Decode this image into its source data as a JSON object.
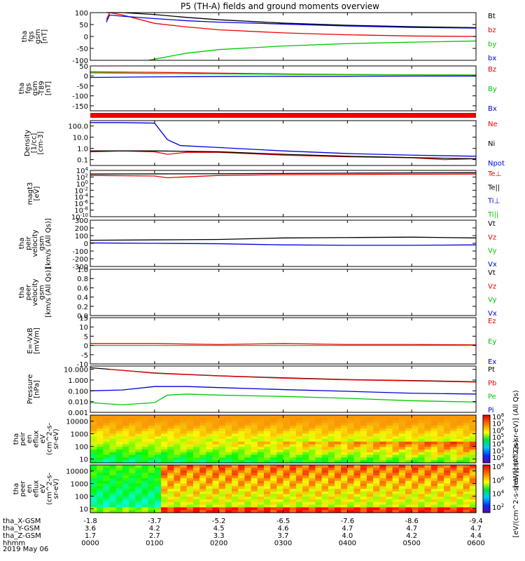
{
  "title": "P5 (TH-A) fields and ground moments overview",
  "date": "2019 May 06",
  "colors": {
    "black": "#000000",
    "red": "#ee0000",
    "green": "#00c800",
    "blue": "#0000dd"
  },
  "chart_data": {
    "type": "line",
    "title": "P5 (TH-A) fields and ground moments overview",
    "xaxis": {
      "time_ticks": [
        "0000",
        "0100",
        "0200",
        "0300",
        "0400",
        "0500",
        "0600"
      ],
      "ephemeris": [
        {
          "name": "tha_X-GSM",
          "values": [
            "-1.8",
            "-3.7",
            "-5.2",
            "-6.5",
            "-7.6",
            "-8.6",
            "-9.4"
          ]
        },
        {
          "name": "tha_Y-GSM",
          "values": [
            "3.6",
            "4.2",
            "4.5",
            "4.6",
            "4.7",
            "4.7",
            "4.7"
          ]
        },
        {
          "name": "tha_Z-GSM",
          "values": [
            "1.7",
            "2.7",
            "3.3",
            "3.7",
            "4.0",
            "4.2",
            "4.4"
          ]
        },
        {
          "name": "hhmm",
          "values": [
            "0000",
            "0100",
            "0200",
            "0300",
            "0400",
            "0500",
            "0600"
          ]
        }
      ]
    },
    "panels": [
      {
        "id": "fgs_gsm",
        "ylabel": [
          "tha",
          "fgs",
          "gsm",
          "[nT]"
        ],
        "ylim": [
          -100,
          100
        ],
        "ticks": [
          "100",
          "50",
          "0",
          "-50",
          "-100"
        ],
        "legend": [
          {
            "text": "Bt",
            "color": "black"
          },
          {
            "text": "bz",
            "color": "red"
          },
          {
            "text": "by",
            "color": "green"
          },
          {
            "text": "bx",
            "color": "blue"
          }
        ],
        "series": [
          {
            "name": "Bt",
            "color": "black",
            "x": [
              0.25,
              0.3,
              0.5,
              1,
              1.5,
              2,
              3,
              4,
              5,
              6
            ],
            "y": [
              102,
              120,
              110,
              92,
              80,
              70,
              56,
              47,
              41,
              37
            ]
          },
          {
            "name": "bz",
            "color": "red",
            "x": [
              0.25,
              0.3,
              0.5,
              1,
              1.5,
              2,
              3,
              4,
              5,
              6
            ],
            "y": [
              70,
              105,
              90,
              55,
              40,
              28,
              15,
              7,
              2,
              0
            ]
          },
          {
            "name": "by",
            "color": "green",
            "x": [
              0.9,
              1,
              1.5,
              2,
              3,
              4,
              5,
              6
            ],
            "y": [
              -110,
              -95,
              -70,
              -55,
              -40,
              -30,
              -24,
              -19
            ]
          },
          {
            "name": "bx",
            "color": "blue",
            "x": [
              0.25,
              0.3,
              0.5,
              1,
              1.5,
              2,
              3,
              4,
              5,
              6
            ],
            "y": [
              60,
              90,
              85,
              75,
              66,
              60,
              52,
              44,
              38,
              35
            ]
          }
        ]
      },
      {
        "id": "fgs_dev",
        "ylabel": [
          "tha",
          "fgs",
          "gsm",
          "-T89",
          "[nT]"
        ],
        "ylim": [
          -175,
          50
        ],
        "ticks": [
          "50",
          "0",
          "-50",
          "-100",
          "-150"
        ],
        "legend": [
          {
            "text": "Bz",
            "color": "red"
          },
          {
            "text": "By",
            "color": "green"
          },
          {
            "text": "Bx",
            "color": "blue"
          }
        ],
        "series": [
          {
            "name": "Bz",
            "color": "red",
            "x": [
              0,
              1,
              2,
              3,
              4,
              5,
              6
            ],
            "y": [
              20,
              18,
              14,
              10,
              7,
              5,
              4
            ]
          },
          {
            "name": "By",
            "color": "green",
            "x": [
              0,
              1,
              2,
              3,
              4,
              5,
              6
            ],
            "y": [
              15,
              12,
              10,
              8,
              6,
              5,
              4
            ]
          },
          {
            "name": "Bx",
            "color": "blue",
            "x": [
              0,
              1,
              2,
              3,
              4,
              5,
              6
            ],
            "y": [
              -8,
              -5,
              -3,
              -2,
              -2,
              -1,
              -1
            ]
          }
        ]
      },
      {
        "id": "density",
        "ylabel": [
          "Density",
          "[1/cc]",
          "[cm-3]"
        ],
        "log": true,
        "ylim": [
          0.03,
          300
        ],
        "ticks": [
          "100.0",
          "10.0",
          "1.0",
          "0.1"
        ],
        "legend": [
          {
            "text": "Ne",
            "color": "red"
          },
          {
            "text": "Ni",
            "color": "black"
          },
          {
            "text": "Npot",
            "color": "blue"
          }
        ],
        "series": [
          {
            "name": "Ne",
            "color": "red",
            "x": [
              0,
              0.5,
              1,
              1.2,
              1.5,
              2,
              3,
              4,
              5,
              5.5,
              6
            ],
            "y": [
              0.5,
              0.6,
              0.5,
              0.3,
              0.45,
              0.45,
              0.25,
              0.18,
              0.15,
              0.1,
              0.12
            ]
          },
          {
            "name": "Ni",
            "color": "black",
            "x": [
              0,
              1,
              2,
              3,
              4,
              5,
              6
            ],
            "y": [
              0.6,
              0.6,
              0.5,
              0.3,
              0.2,
              0.15,
              0.12
            ]
          },
          {
            "name": "Npot",
            "color": "blue",
            "x": [
              0,
              0.5,
              1,
              1.2,
              1.4,
              2,
              3,
              4,
              5,
              6
            ],
            "y": [
              200,
              200,
              180,
              6,
              1.8,
              1.2,
              0.6,
              0.35,
              0.25,
              0.2
            ]
          }
        ]
      },
      {
        "id": "magt3",
        "ylabel": [
          "magt3",
          "[eV]"
        ],
        "log": true,
        "ylim": [
          1e-10,
          10000.0
        ],
        "ticks": [
          "10^4",
          "10^2",
          "10^0",
          "10^-2",
          "10^-4",
          "10^-6",
          "10^-8",
          "10^-10"
        ],
        "legend": [
          {
            "text": "Te⊥",
            "color": "red"
          },
          {
            "text": "Te||",
            "color": "black"
          },
          {
            "text": "Ti⊥",
            "color": "blue"
          },
          {
            "text": "Ti||",
            "color": "green"
          }
        ],
        "series": [
          {
            "name": "Ti",
            "color": "black",
            "x": [
              0,
              1,
              2,
              3,
              4,
              5,
              6
            ],
            "y": [
              800,
              900,
              1000,
              1200,
              1500,
              1800,
              2000
            ]
          },
          {
            "name": "Te",
            "color": "red",
            "x": [
              0,
              1,
              1.2,
              2,
              3,
              4,
              5,
              6
            ],
            "y": [
              300,
              200,
              60,
              300,
              500,
              600,
              700,
              800
            ]
          }
        ]
      },
      {
        "id": "peir_vel",
        "ylabel": [
          "tha",
          "peir",
          "velocity",
          "gsm",
          "[km/s (All Qs)]"
        ],
        "ylim": [
          -300,
          300
        ],
        "ticks": [
          "300",
          "200",
          "100",
          "0",
          "-100",
          "-200",
          "-300"
        ],
        "legend": [
          {
            "text": "Vt",
            "color": "black"
          },
          {
            "text": "Vz",
            "color": "red"
          },
          {
            "text": "Vy",
            "color": "green"
          },
          {
            "text": "Vx",
            "color": "blue"
          }
        ],
        "series": [
          {
            "name": "Vt",
            "color": "black",
            "x": [
              0,
              1,
              2,
              3,
              4,
              5,
              6
            ],
            "y": [
              40,
              45,
              50,
              70,
              75,
              80,
              70
            ]
          },
          {
            "name": "Vx",
            "color": "blue",
            "x": [
              0,
              1,
              2,
              3,
              4,
              5,
              6
            ],
            "y": [
              5,
              0,
              -5,
              -20,
              -25,
              -25,
              -20
            ]
          }
        ]
      },
      {
        "id": "peer_vel",
        "ylabel": [
          "tha",
          "peer",
          "velocity",
          "gsm",
          "[km/s (All Qs)]"
        ],
        "ylim": [
          0,
          1
        ],
        "ticks": [
          "1.0",
          "0.8",
          "0.6",
          "0.4",
          "0.2",
          "0.0"
        ],
        "legend": [
          {
            "text": "Vt",
            "color": "black"
          },
          {
            "text": "Vz",
            "color": "red"
          },
          {
            "text": "Vy",
            "color": "green"
          },
          {
            "text": "Vx",
            "color": "blue"
          }
        ],
        "series": []
      },
      {
        "id": "efield",
        "ylabel": [
          "E=-VxB",
          "[mV/m]"
        ],
        "ylim": [
          -10,
          15
        ],
        "ticks": [
          "15",
          "10",
          "5",
          "0",
          "-5",
          "-10"
        ],
        "legend": [
          {
            "text": "Ez",
            "color": "red"
          },
          {
            "text": "Ey",
            "color": "green"
          },
          {
            "text": "Ex",
            "color": "blue"
          }
        ],
        "series": [
          {
            "name": "Ez",
            "color": "red",
            "x": [
              0,
              1,
              2,
              3,
              4,
              5,
              6
            ],
            "y": [
              1,
              1,
              0.5,
              1,
              0.5,
              0.5,
              0.3
            ]
          },
          {
            "name": "Ey",
            "color": "green",
            "x": [
              0,
              1,
              2,
              3,
              4,
              5,
              6
            ],
            "y": [
              0,
              0,
              0,
              0,
              0,
              0,
              0
            ]
          }
        ]
      },
      {
        "id": "pressure",
        "ylabel": [
          "Pressure",
          "[nPa]"
        ],
        "log": true,
        "ylim": [
          0.001,
          20
        ],
        "ticks": [
          "10.000",
          "1.000",
          "0.100",
          "0.010",
          "0.001"
        ],
        "legend": [
          {
            "text": "Pt",
            "color": "black"
          },
          {
            "text": "Pb",
            "color": "red"
          },
          {
            "text": "Pe",
            "color": "green"
          },
          {
            "text": "Pi",
            "color": "blue"
          }
        ],
        "series": [
          {
            "name": "Pt",
            "color": "black",
            "x": [
              0,
              0.5,
              1,
              2,
              3,
              4,
              5,
              6
            ],
            "y": [
              14,
              8,
              4.5,
              2.5,
              1.6,
              1.1,
              0.9,
              0.7
            ]
          },
          {
            "name": "Pb",
            "color": "red",
            "x": [
              0.3,
              0.5,
              1,
              2,
              3,
              4,
              5,
              6
            ],
            "y": [
              10,
              8,
              4.3,
              2.4,
              1.5,
              1.05,
              0.85,
              0.65
            ]
          },
          {
            "name": "Pi",
            "color": "blue",
            "x": [
              0,
              0.5,
              1,
              1.5,
              2,
              3,
              4,
              5,
              6
            ],
            "y": [
              0.1,
              0.12,
              0.25,
              0.25,
              0.2,
              0.13,
              0.09,
              0.06,
              0.05
            ]
          },
          {
            "name": "Pe",
            "color": "green",
            "x": [
              0,
              0.5,
              1,
              1.2,
              1.5,
              2,
              3,
              4,
              5,
              6
            ],
            "y": [
              0.008,
              0.005,
              0.008,
              0.04,
              0.05,
              0.04,
              0.03,
              0.02,
              0.012,
              0.009
            ]
          }
        ]
      },
      {
        "id": "peir_en",
        "ylabel": [
          "tha",
          "peir",
          "en",
          "eflux",
          "eV",
          "(cm^2-s-",
          "sr-eV)"
        ],
        "type": "heatmap",
        "log": true,
        "ylim": [
          5,
          30000
        ],
        "ticks": [
          "10000",
          "1000",
          "100",
          "10"
        ],
        "colorbar": {
          "label": "[eV/(cm^2-s-sr-eV)] (All Qs)",
          "ticks": [
            "10^8",
            "10^7",
            "10^6",
            "10^5",
            "10^4",
            "10^3",
            "10^2"
          ]
        }
      },
      {
        "id": "peer_en",
        "ylabel": [
          "tha",
          "peer",
          "en",
          "eflux",
          "eV",
          "(cm^2-s-",
          "sr-eV)"
        ],
        "type": "heatmap",
        "log": true,
        "ylim": [
          5,
          30000
        ],
        "ticks": [
          "10000",
          "1000",
          "100",
          "10"
        ],
        "colorbar": {
          "label": "[eV/(cm^2-s-sr-eV)] (All Qs)",
          "ticks": [
            "10^8",
            "10^6",
            "10^4",
            "10^2"
          ]
        }
      }
    ]
  }
}
